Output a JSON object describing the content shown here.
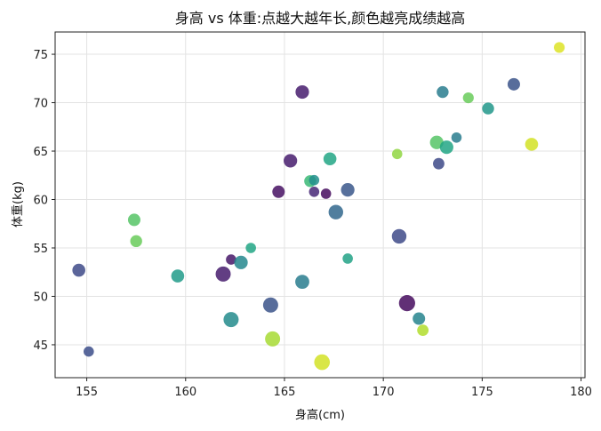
{
  "chart_data": {
    "type": "scatter",
    "title": "身高 vs 体重:点越大越年长,颜色越亮成绩越高",
    "xlabel": "身高(cm)",
    "ylabel": "体重(kg)",
    "xlim": [
      153.4,
      180.2
    ],
    "ylim": [
      41.6,
      77.3
    ],
    "xticks": [
      155,
      160,
      165,
      170,
      175,
      180
    ],
    "yticks": [
      45,
      50,
      55,
      60,
      65,
      70,
      75
    ],
    "grid": true,
    "encoding": {
      "size": "年龄 (larger = older)",
      "color": "成绩 (viridis, brighter = higher)"
    },
    "points": [
      {
        "x": 154.6,
        "y": 52.7,
        "size": 0.55,
        "color": 0.28
      },
      {
        "x": 155.1,
        "y": 44.3,
        "size": 0.3,
        "color": 0.3
      },
      {
        "x": 157.4,
        "y": 57.9,
        "size": 0.5,
        "color": 0.84
      },
      {
        "x": 157.5,
        "y": 55.7,
        "size": 0.45,
        "color": 0.86
      },
      {
        "x": 159.6,
        "y": 52.1,
        "size": 0.55,
        "color": 0.68
      },
      {
        "x": 161.9,
        "y": 52.3,
        "size": 0.75,
        "color": 0.1
      },
      {
        "x": 162.3,
        "y": 53.8,
        "size": 0.3,
        "color": 0.08
      },
      {
        "x": 162.3,
        "y": 47.6,
        "size": 0.75,
        "color": 0.6
      },
      {
        "x": 162.8,
        "y": 53.5,
        "size": 0.6,
        "color": 0.58
      },
      {
        "x": 163.3,
        "y": 55.0,
        "size": 0.3,
        "color": 0.74
      },
      {
        "x": 164.3,
        "y": 49.1,
        "size": 0.75,
        "color": 0.32
      },
      {
        "x": 164.4,
        "y": 45.6,
        "size": 0.75,
        "color": 0.92
      },
      {
        "x": 164.7,
        "y": 60.8,
        "size": 0.5,
        "color": 0.06
      },
      {
        "x": 165.3,
        "y": 64.0,
        "size": 0.6,
        "color": 0.1
      },
      {
        "x": 165.9,
        "y": 71.1,
        "size": 0.6,
        "color": 0.1
      },
      {
        "x": 165.9,
        "y": 51.5,
        "size": 0.65,
        "color": 0.52
      },
      {
        "x": 166.3,
        "y": 61.9,
        "size": 0.45,
        "color": 0.8
      },
      {
        "x": 166.5,
        "y": 62.0,
        "size": 0.3,
        "color": 0.62
      },
      {
        "x": 166.5,
        "y": 60.8,
        "size": 0.3,
        "color": 0.14
      },
      {
        "x": 166.9,
        "y": 43.2,
        "size": 0.8,
        "color": 0.96
      },
      {
        "x": 167.1,
        "y": 60.6,
        "size": 0.3,
        "color": 0.04
      },
      {
        "x": 167.3,
        "y": 64.2,
        "size": 0.55,
        "color": 0.74
      },
      {
        "x": 167.6,
        "y": 58.7,
        "size": 0.7,
        "color": 0.42
      },
      {
        "x": 168.2,
        "y": 61.0,
        "size": 0.6,
        "color": 0.34
      },
      {
        "x": 168.2,
        "y": 53.9,
        "size": 0.3,
        "color": 0.72
      },
      {
        "x": 170.7,
        "y": 64.7,
        "size": 0.3,
        "color": 0.9
      },
      {
        "x": 170.8,
        "y": 56.2,
        "size": 0.7,
        "color": 0.28
      },
      {
        "x": 171.2,
        "y": 49.3,
        "size": 0.85,
        "color": 0.04
      },
      {
        "x": 171.8,
        "y": 47.7,
        "size": 0.5,
        "color": 0.56
      },
      {
        "x": 172.0,
        "y": 46.5,
        "size": 0.4,
        "color": 0.93
      },
      {
        "x": 172.7,
        "y": 65.9,
        "size": 0.6,
        "color": 0.84
      },
      {
        "x": 172.8,
        "y": 63.7,
        "size": 0.4,
        "color": 0.28
      },
      {
        "x": 173.0,
        "y": 71.1,
        "size": 0.45,
        "color": 0.52
      },
      {
        "x": 173.2,
        "y": 65.4,
        "size": 0.6,
        "color": 0.74
      },
      {
        "x": 173.7,
        "y": 66.4,
        "size": 0.3,
        "color": 0.52
      },
      {
        "x": 174.3,
        "y": 70.5,
        "size": 0.35,
        "color": 0.86
      },
      {
        "x": 175.3,
        "y": 69.4,
        "size": 0.45,
        "color": 0.66
      },
      {
        "x": 176.6,
        "y": 71.9,
        "size": 0.5,
        "color": 0.32
      },
      {
        "x": 177.5,
        "y": 65.7,
        "size": 0.55,
        "color": 0.96
      },
      {
        "x": 178.9,
        "y": 75.7,
        "size": 0.35,
        "color": 0.97
      }
    ]
  }
}
